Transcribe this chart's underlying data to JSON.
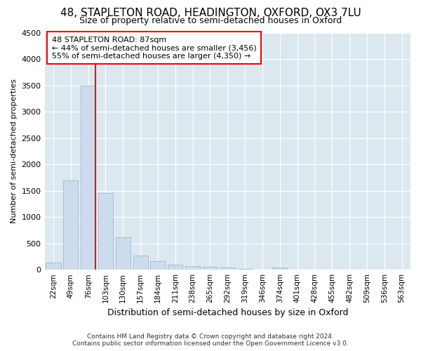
{
  "title": "48, STAPLETON ROAD, HEADINGTON, OXFORD, OX3 7LU",
  "subtitle": "Size of property relative to semi-detached houses in Oxford",
  "xlabel": "Distribution of semi-detached houses by size in Oxford",
  "ylabel": "Number of semi-detached properties",
  "categories": [
    "22sqm",
    "49sqm",
    "76sqm",
    "103sqm",
    "130sqm",
    "157sqm",
    "184sqm",
    "211sqm",
    "238sqm",
    "265sqm",
    "292sqm",
    "319sqm",
    "346sqm",
    "374sqm",
    "401sqm",
    "428sqm",
    "455sqm",
    "482sqm",
    "509sqm",
    "536sqm",
    "563sqm"
  ],
  "values": [
    140,
    1700,
    3500,
    1450,
    620,
    270,
    160,
    95,
    70,
    55,
    45,
    10,
    5,
    45,
    0,
    0,
    0,
    0,
    0,
    0,
    0
  ],
  "bar_color": "#ccdcee",
  "bar_edgecolor": "#aabcce",
  "ylim": [
    0,
    4500
  ],
  "yticks": [
    0,
    500,
    1000,
    1500,
    2000,
    2500,
    3000,
    3500,
    4000,
    4500
  ],
  "redline_x": 2.42,
  "annotation_title": "48 STAPLETON ROAD: 87sqm",
  "annotation_line1": "← 44% of semi-detached houses are smaller (3,456)",
  "annotation_line2": "55% of semi-detached houses are larger (4,350) →",
  "footer1": "Contains HM Land Registry data © Crown copyright and database right 2024.",
  "footer2": "Contains public sector information licensed under the Open Government Licence v3.0.",
  "fig_bg_color": "#ffffff",
  "plot_bg_color": "#dce8f0",
  "grid_color": "#ffffff",
  "title_fontsize": 11,
  "subtitle_fontsize": 9,
  "ylabel_fontsize": 8,
  "xlabel_fontsize": 9,
  "tick_fontsize": 7.5,
  "ytick_fontsize": 8,
  "ann_fontsize": 8,
  "footer_fontsize": 6.5
}
